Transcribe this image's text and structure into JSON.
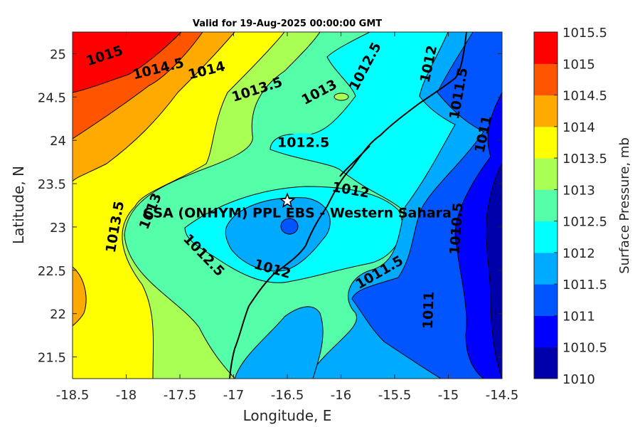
{
  "title": "Valid for 19-Aug-2025 00:00:00 GMT",
  "xlabel": "Longitude, E",
  "ylabel": "Latitude, N",
  "colorbar_label": "Surface Pressure, mb",
  "site": {
    "name": "CSA (ONHYM) PPL EBS  - Western Sahara",
    "lon": -16.5,
    "lat": 23.3
  },
  "map_data": {
    "type": "filled-contour",
    "xlim": [
      -18.5,
      -14.5
    ],
    "ylim": [
      21.25,
      25.25
    ],
    "x_ticks": [
      -18.5,
      -18,
      -17.5,
      -17,
      -16.5,
      -16,
      -15.5,
      -15,
      -14.5
    ],
    "x_tick_labels": [
      "-18.5",
      "-18",
      "-17.5",
      "-17",
      "-16.5",
      "-16",
      "-15.5",
      "-15",
      "-14.5"
    ],
    "y_ticks": [
      21.5,
      22,
      22.5,
      23,
      23.5,
      24,
      24.5,
      25
    ],
    "y_tick_labels": [
      "21.5",
      "22",
      "22.5",
      "23",
      "23.5",
      "24",
      "24.5",
      "25"
    ],
    "levels": [
      1010,
      1010.5,
      1011,
      1011.5,
      1012,
      1012.5,
      1013,
      1013.5,
      1014,
      1014.5,
      1015,
      1015.5
    ],
    "level_labels": [
      "1010",
      "1010.5",
      "1011",
      "1011.5",
      "1012",
      "1012.5",
      "1013",
      "1013.5",
      "1014",
      "1014.5",
      "1015",
      "1015.5"
    ],
    "colors": [
      "#0000aa",
      "#0000ff",
      "#0055ff",
      "#00aaff",
      "#00ffff",
      "#55ffaa",
      "#aaff55",
      "#ffff00",
      "#ffaa00",
      "#ff5500",
      "#ff0000",
      "#aa0000"
    ],
    "contour_labels": [
      {
        "text": "1015",
        "lon": -18.2,
        "lat": 24.97,
        "angle": -18
      },
      {
        "text": "1014.5",
        "lon": -17.7,
        "lat": 24.82,
        "angle": -14
      },
      {
        "text": "1014",
        "lon": -17.25,
        "lat": 24.8,
        "angle": -14
      },
      {
        "text": "1013.5",
        "lon": -16.78,
        "lat": 24.58,
        "angle": -18
      },
      {
        "text": "1013",
        "lon": -16.2,
        "lat": 24.55,
        "angle": -28
      },
      {
        "text": "1012.5",
        "lon": -15.77,
        "lat": 24.85,
        "angle": -62
      },
      {
        "text": "1012",
        "lon": -15.18,
        "lat": 24.88,
        "angle": -78
      },
      {
        "text": "1011.5",
        "lon": -14.9,
        "lat": 24.54,
        "angle": -80
      },
      {
        "text": "1011",
        "lon": -14.67,
        "lat": 24.07,
        "angle": -78
      },
      {
        "text": "1012.5",
        "lon": -16.35,
        "lat": 23.97,
        "angle": 0
      },
      {
        "text": "1012",
        "lon": -15.91,
        "lat": 23.42,
        "angle": 10
      },
      {
        "text": "1013.5",
        "lon": -18.1,
        "lat": 23.0,
        "angle": -80
      },
      {
        "text": "1013",
        "lon": -17.77,
        "lat": 23.18,
        "angle": -68
      },
      {
        "text": "1012.5",
        "lon": -17.28,
        "lat": 22.67,
        "angle": 46
      },
      {
        "text": "1012",
        "lon": -16.64,
        "lat": 22.51,
        "angle": 16
      },
      {
        "text": "1011.5",
        "lon": -15.64,
        "lat": 22.47,
        "angle": -30
      },
      {
        "text": "1010.5",
        "lon": -14.92,
        "lat": 22.98,
        "angle": -86
      },
      {
        "text": "1011",
        "lon": -15.18,
        "lat": 22.04,
        "angle": -88
      }
    ]
  }
}
